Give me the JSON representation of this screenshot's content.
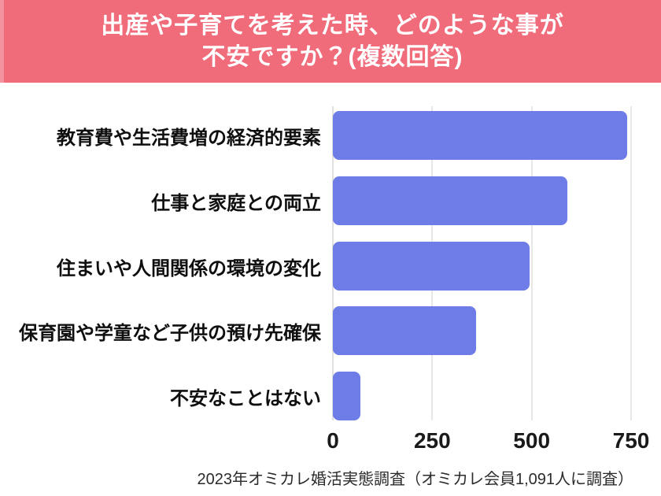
{
  "title": {
    "line1": "出産や子育てを考えた時、どのような事が",
    "line2": "不安ですか？(複数回答)"
  },
  "chart_data": {
    "type": "bar",
    "orientation": "horizontal",
    "title": "出産や子育てを考えた時、どのような事が不安ですか？(複数回答)",
    "categories": [
      "教育費や生活費増の経済的要素",
      "仕事と家庭との両立",
      "住まいや人間関係の環境の変化",
      "保育園や学童など子供の預け先確保",
      "不安なことはない"
    ],
    "values": [
      740,
      590,
      495,
      360,
      70
    ],
    "xlim": [
      0,
      750
    ],
    "xticks": [
      0,
      250,
      500,
      750
    ],
    "grid": true,
    "legend": "none",
    "bar_color": "#6D7CE6"
  },
  "footer": {
    "source": "2023年オミカレ婚活実態調査（オミカレ会員1,091人に調査）"
  },
  "colors": {
    "banner": "#F16C7B",
    "banner_edge": "#F5929F",
    "bar": "#6D7CE6",
    "gridline": "#CFCFCF",
    "title_text": "#FFFFFF",
    "label_text": "#0F0F0F",
    "footer_text": "#2B2B2B"
  }
}
